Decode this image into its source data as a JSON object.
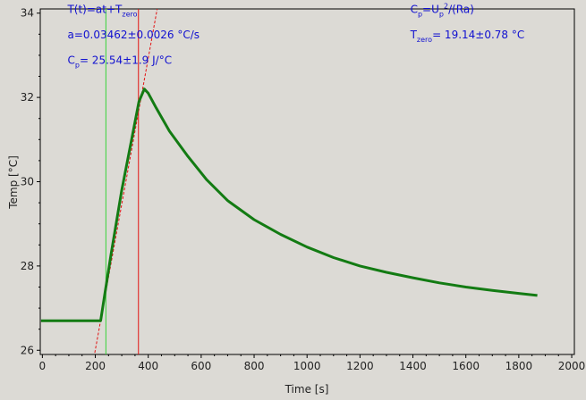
{
  "chart_data": {
    "type": "line",
    "xlabel": "Time [s]",
    "ylabel": "Temp [°C]",
    "xlim": [
      -8,
      2010
    ],
    "ylim": [
      25.9,
      34.1
    ],
    "x_ticks": [
      0,
      200,
      400,
      600,
      800,
      1000,
      1200,
      1400,
      1600,
      1800,
      2000
    ],
    "y_ticks": [
      26,
      28,
      30,
      32,
      34
    ],
    "grid": false,
    "colors": {
      "data": "#137b13",
      "fit": "#e21111",
      "start_marker": "#39d439",
      "end_marker": "#e21111",
      "annotation": "#1010d0",
      "background": "#dcdad5"
    },
    "series": [
      {
        "values": [
          [
            -5,
            26.7
          ],
          [
            220,
            26.7
          ],
          [
            235,
            27.3
          ],
          [
            260,
            28.3
          ],
          [
            300,
            29.8
          ],
          [
            340,
            31.1
          ],
          [
            365,
            31.9
          ],
          [
            385,
            32.2
          ],
          [
            400,
            32.1
          ],
          [
            430,
            31.75
          ],
          [
            480,
            31.2
          ],
          [
            550,
            30.6
          ],
          [
            620,
            30.05
          ],
          [
            700,
            29.55
          ],
          [
            800,
            29.1
          ],
          [
            900,
            28.75
          ],
          [
            1000,
            28.45
          ],
          [
            1100,
            28.2
          ],
          [
            1200,
            28.0
          ],
          [
            1300,
            27.85
          ],
          [
            1400,
            27.72
          ],
          [
            1500,
            27.6
          ],
          [
            1600,
            27.5
          ],
          [
            1700,
            27.42
          ],
          [
            1800,
            27.35
          ],
          [
            1870,
            27.3
          ]
        ]
      }
    ],
    "fit_line": {
      "x1": 195,
      "x2": 450
    },
    "vertical_markers": [
      240,
      363
    ],
    "annotations": [
      {
        "text": "T(t)=at+T",
        "sub": "zero",
        "after": "",
        "x": 95,
        "y": 34.0
      },
      {
        "text": "a=0.03462±0.0026 °C/s",
        "sub": "",
        "after": "",
        "x": 95,
        "y": 33.4
      },
      {
        "text": "C",
        "sub": "p",
        "after": "= 25.54±1.9 J/°C",
        "x": 95,
        "y": 32.8
      },
      {
        "text": "C",
        "sub": "p",
        "after": "=U",
        "sub2": "p",
        "sup": "2",
        "tail": "/(Ra)",
        "x": 1390,
        "y": 34.0
      },
      {
        "text": "T",
        "sub": "zero",
        "after": "= 19.14±0.78 °C",
        "x": 1390,
        "y": 33.4
      }
    ]
  }
}
